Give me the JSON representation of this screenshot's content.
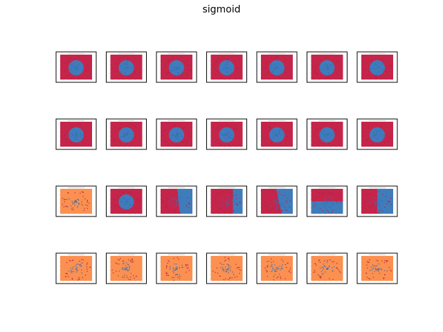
{
  "figure": {
    "title": "sigmoid"
  },
  "colors": {
    "red": "#c5254b",
    "blue": "#3f7cbc",
    "orange": "#fb9050",
    "point_blue": "#3a6bb0",
    "point_red": "#b02040"
  },
  "chart_data": {
    "type": "scatter",
    "layout": {
      "rows": 4,
      "cols": 7
    },
    "panels": [
      {
        "row": 0,
        "col": 0,
        "kind": "circle"
      },
      {
        "row": 0,
        "col": 1,
        "kind": "circle"
      },
      {
        "row": 0,
        "col": 2,
        "kind": "circle"
      },
      {
        "row": 0,
        "col": 3,
        "kind": "circle"
      },
      {
        "row": 0,
        "col": 4,
        "kind": "circle"
      },
      {
        "row": 0,
        "col": 5,
        "kind": "circle"
      },
      {
        "row": 0,
        "col": 6,
        "kind": "circle"
      },
      {
        "row": 1,
        "col": 0,
        "kind": "circle"
      },
      {
        "row": 1,
        "col": 1,
        "kind": "circle"
      },
      {
        "row": 1,
        "col": 2,
        "kind": "circle"
      },
      {
        "row": 1,
        "col": 3,
        "kind": "circle"
      },
      {
        "row": 1,
        "col": 4,
        "kind": "circle"
      },
      {
        "row": 1,
        "col": 5,
        "kind": "circle"
      },
      {
        "row": 1,
        "col": 6,
        "kind": "circle"
      },
      {
        "row": 2,
        "col": 0,
        "kind": "orange"
      },
      {
        "row": 2,
        "col": 1,
        "kind": "circle"
      },
      {
        "row": 2,
        "col": 2,
        "kind": "split-diag-right"
      },
      {
        "row": 2,
        "col": 3,
        "kind": "split-right-edge"
      },
      {
        "row": 2,
        "col": 4,
        "kind": "split-diag-left"
      },
      {
        "row": 2,
        "col": 5,
        "kind": "split-horizontal"
      },
      {
        "row": 2,
        "col": 6,
        "kind": "split-vertical"
      },
      {
        "row": 3,
        "col": 0,
        "kind": "orange"
      },
      {
        "row": 3,
        "col": 1,
        "kind": "orange"
      },
      {
        "row": 3,
        "col": 2,
        "kind": "orange"
      },
      {
        "row": 3,
        "col": 3,
        "kind": "orange"
      },
      {
        "row": 3,
        "col": 4,
        "kind": "orange"
      },
      {
        "row": 3,
        "col": 5,
        "kind": "orange"
      },
      {
        "row": 3,
        "col": 6,
        "kind": "orange"
      }
    ]
  }
}
